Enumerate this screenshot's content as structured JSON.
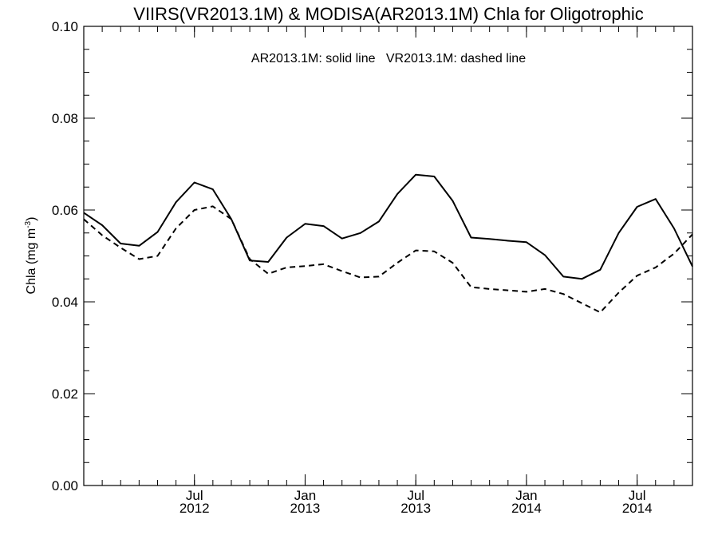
{
  "chart_data": {
    "type": "line",
    "title": "VIIRS(VR2013.1M) & MODISA(AR2013.1M)  Chla for Oligotrophic",
    "annotation": "AR2013.1M: solid line   VR2013.1M: dashed line",
    "ylabel": "Chla (mg m",
    "ylabel_sup": "-3",
    "ylabel_close": ")",
    "xlabel": "",
    "ylim": [
      0.0,
      0.1
    ],
    "xlim": [
      "2012-01",
      "2014-10"
    ],
    "y_ticks": [
      "0.00",
      "0.02",
      "0.04",
      "0.06",
      "0.08",
      "0.10"
    ],
    "x_ticks": [
      {
        "month": "2012-07",
        "label_top": "Jul",
        "label_bottom": "2012"
      },
      {
        "month": "2013-01",
        "label_top": "Jan",
        "label_bottom": "2013"
      },
      {
        "month": "2013-07",
        "label_top": "Jul",
        "label_bottom": "2013"
      },
      {
        "month": "2014-01",
        "label_top": "Jan",
        "label_bottom": "2014"
      },
      {
        "month": "2014-07",
        "label_top": "Jul",
        "label_bottom": "2014"
      }
    ],
    "x": [
      "2012-01",
      "2012-02",
      "2012-03",
      "2012-04",
      "2012-05",
      "2012-06",
      "2012-07",
      "2012-08",
      "2012-09",
      "2012-10",
      "2012-11",
      "2012-12",
      "2013-01",
      "2013-02",
      "2013-03",
      "2013-04",
      "2013-05",
      "2013-06",
      "2013-07",
      "2013-08",
      "2013-09",
      "2013-10",
      "2013-11",
      "2013-12",
      "2014-01",
      "2014-02",
      "2014-03",
      "2014-04",
      "2014-05",
      "2014-06",
      "2014-07",
      "2014-08",
      "2014-09",
      "2014-10"
    ],
    "series": [
      {
        "style": "solid",
        "values": [
          0.0594,
          0.0567,
          0.0527,
          0.0522,
          0.0552,
          0.0617,
          0.066,
          0.0645,
          0.058,
          0.049,
          0.0487,
          0.054,
          0.057,
          0.0565,
          0.0538,
          0.055,
          0.0575,
          0.0635,
          0.0677,
          0.0673,
          0.062,
          0.054,
          0.0537,
          0.0533,
          0.053,
          0.0502,
          0.0455,
          0.045,
          0.047,
          0.055,
          0.0607,
          0.0624,
          0.056,
          0.0477
        ]
      },
      {
        "style": "dashed",
        "values": [
          0.058,
          0.0545,
          0.0518,
          0.0493,
          0.05,
          0.056,
          0.06,
          0.0608,
          0.058,
          0.0493,
          0.0461,
          0.0475,
          0.0478,
          0.0482,
          0.0467,
          0.0453,
          0.0455,
          0.0485,
          0.0512,
          0.051,
          0.0485,
          0.0432,
          0.0428,
          0.0425,
          0.0422,
          0.0428,
          0.0417,
          0.0397,
          0.0377,
          0.042,
          0.0457,
          0.0475,
          0.0505,
          0.0547
        ]
      }
    ]
  }
}
